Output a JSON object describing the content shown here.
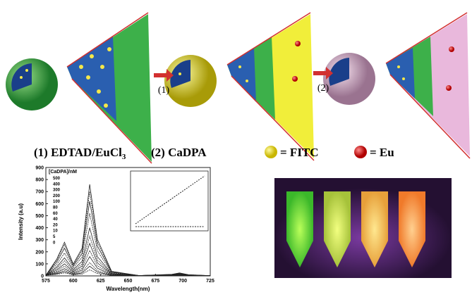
{
  "figure": {
    "steps": [
      "(1)",
      "(2)"
    ],
    "caption_1": "(1) EDTAD/EuCl",
    "caption_1_sub": "3",
    "caption_2": "(2) CaDPA",
    "key_fitc": "= FITC",
    "key_eu": "= Eu"
  },
  "chart_data": {
    "type": "line",
    "xlabel": "Wavelength(nm)",
    "ylabel": "Intensity (a.u)",
    "legend_title": "[CaDPA]/nM",
    "color": "#222",
    "xlim": [
      575,
      725
    ],
    "ylim": [
      0,
      900
    ],
    "xticks": [
      575,
      600,
      625,
      650,
      675,
      700,
      725
    ],
    "yticks": [
      0,
      100,
      200,
      300,
      400,
      500,
      600,
      700,
      800,
      900
    ],
    "x": [
      575,
      585,
      592,
      600,
      608,
      615,
      622,
      635,
      660,
      690,
      697,
      705,
      725
    ],
    "series": [
      {
        "name": "500",
        "values": [
          5,
          140,
          280,
          98,
          228,
          760,
          304,
          38,
          3,
          13,
          25,
          10,
          2
        ]
      },
      {
        "name": "400",
        "values": [
          5,
          130,
          260,
          91,
          210,
          700,
          280,
          35,
          3,
          12,
          23,
          9,
          2
        ]
      },
      {
        "name": "300",
        "values": [
          5,
          115,
          230,
          81,
          186,
          620,
          248,
          31,
          3,
          10,
          20,
          8,
          2
        ]
      },
      {
        "name": "200",
        "values": [
          5,
          95,
          190,
          67,
          156,
          520,
          208,
          26,
          3,
          9,
          18,
          7,
          2
        ]
      },
      {
        "name": "100",
        "values": [
          5,
          75,
          150,
          53,
          120,
          400,
          160,
          20,
          3,
          8,
          15,
          6,
          2
        ]
      },
      {
        "name": "80",
        "values": [
          5,
          63,
          125,
          44,
          99,
          330,
          132,
          17,
          3,
          7,
          13,
          5,
          2
        ]
      },
      {
        "name": "60",
        "values": [
          5,
          50,
          100,
          35,
          81,
          270,
          108,
          14,
          3,
          6,
          11,
          4,
          2
        ]
      },
      {
        "name": "40",
        "values": [
          5,
          40,
          80,
          28,
          63,
          210,
          84,
          11,
          3,
          5,
          9,
          4,
          2
        ]
      },
      {
        "name": "20",
        "values": [
          5,
          30,
          60,
          21,
          48,
          160,
          64,
          8,
          3,
          4,
          8,
          3,
          2
        ]
      },
      {
        "name": "10",
        "values": [
          5,
          23,
          45,
          16,
          33,
          110,
          44,
          6,
          3,
          4,
          7,
          3,
          2
        ]
      },
      {
        "name": "5",
        "values": [
          5,
          18,
          35,
          12,
          24,
          80,
          32,
          4,
          3,
          3,
          6,
          2,
          2
        ]
      },
      {
        "name": "0",
        "values": [
          5,
          13,
          25,
          9,
          15,
          50,
          20,
          3,
          3,
          3,
          5,
          2,
          2
        ]
      }
    ]
  }
}
